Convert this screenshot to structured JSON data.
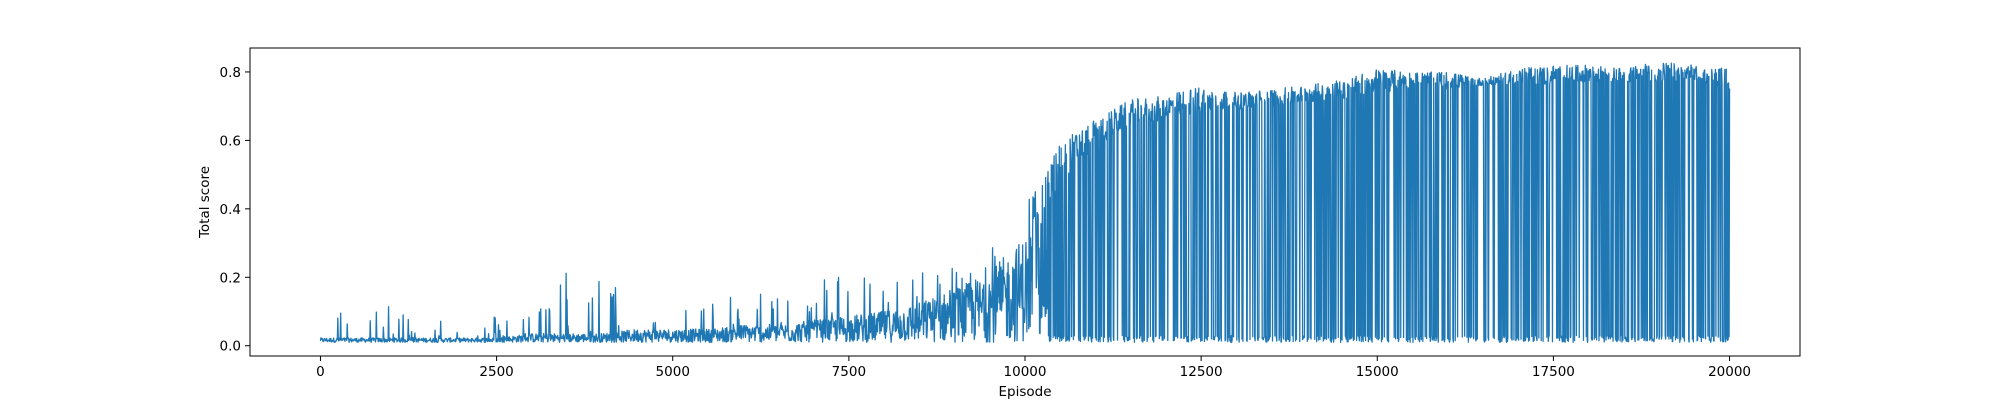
{
  "chart_data": {
    "type": "line",
    "title": "",
    "xlabel": "Episode",
    "ylabel": "Total score",
    "xlim": [
      -1000,
      21000
    ],
    "ylim": [
      -0.03,
      0.87
    ],
    "xticks": [
      0,
      2500,
      5000,
      7500,
      10000,
      12500,
      15000,
      17500,
      20000
    ],
    "xtick_labels": [
      "0",
      "2500",
      "5000",
      "7500",
      "10000",
      "12500",
      "15000",
      "17500",
      "20000"
    ],
    "yticks": [
      0.0,
      0.2,
      0.4,
      0.6,
      0.8
    ],
    "ytick_labels": [
      "0.0",
      "0.2",
      "0.4",
      "0.6",
      "0.8"
    ],
    "grid": false,
    "legend": "none",
    "series": [
      {
        "color": "#1f77b4",
        "x": [
          0,
          500,
          1000,
          1500,
          2000,
          2500,
          3000,
          3500,
          4000,
          4500,
          5000,
          5500,
          6000,
          6500,
          7000,
          7500,
          8000,
          8500,
          9000,
          9500,
          10000,
          10500,
          11000,
          11500,
          12000,
          12500,
          13000,
          13500,
          14000,
          14500,
          15000,
          15500,
          16000,
          16500,
          17000,
          17500,
          18000,
          18500,
          19000,
          19500,
          20000
        ],
        "y_max": [
          0.08,
          0.18,
          0.11,
          0.09,
          0.08,
          0.09,
          0.09,
          0.23,
          0.2,
          0.14,
          0.12,
          0.13,
          0.15,
          0.18,
          0.17,
          0.26,
          0.19,
          0.22,
          0.26,
          0.32,
          0.42,
          0.6,
          0.66,
          0.72,
          0.73,
          0.76,
          0.74,
          0.75,
          0.76,
          0.78,
          0.81,
          0.8,
          0.8,
          0.78,
          0.81,
          0.82,
          0.82,
          0.81,
          0.83,
          0.82,
          0.81
        ],
        "y_min": [
          0.01,
          0.01,
          0.01,
          0.01,
          0.01,
          0.01,
          0.01,
          0.01,
          0.01,
          0.01,
          0.01,
          0.01,
          0.01,
          0.01,
          0.01,
          0.01,
          0.01,
          0.01,
          0.01,
          0.01,
          0.01,
          0.01,
          0.01,
          0.01,
          0.01,
          0.01,
          0.01,
          0.01,
          0.01,
          0.01,
          0.01,
          0.01,
          0.01,
          0.01,
          0.01,
          0.01,
          0.01,
          0.01,
          0.01,
          0.01,
          0.01
        ],
        "y_typical": [
          0.02,
          0.02,
          0.02,
          0.02,
          0.02,
          0.02,
          0.03,
          0.03,
          0.03,
          0.04,
          0.04,
          0.04,
          0.05,
          0.05,
          0.06,
          0.07,
          0.08,
          0.1,
          0.13,
          0.17,
          0.25,
          0.48,
          0.58,
          0.64,
          0.66,
          0.68,
          0.69,
          0.7,
          0.71,
          0.72,
          0.74,
          0.75,
          0.75,
          0.76,
          0.76,
          0.76,
          0.77,
          0.77,
          0.77,
          0.77,
          0.75
        ]
      }
    ]
  }
}
